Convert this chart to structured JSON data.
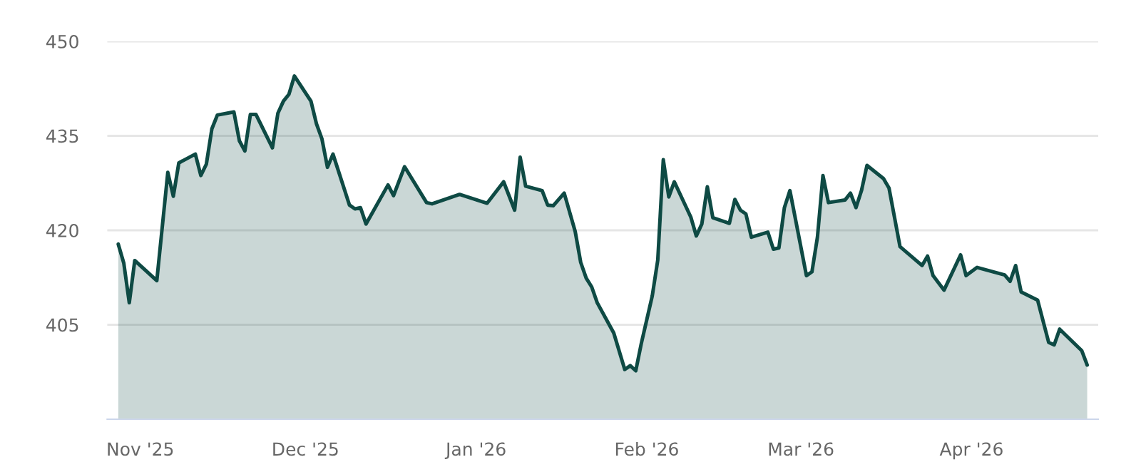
{
  "chart_data": {
    "type": "area",
    "x": [
      "2025-10-28",
      "2025-10-29",
      "2025-10-30",
      "2025-10-31",
      "2025-11-04",
      "2025-11-06",
      "2025-11-07",
      "2025-11-08",
      "2025-11-11",
      "2025-11-12",
      "2025-11-13",
      "2025-11-14",
      "2025-11-15",
      "2025-11-18",
      "2025-11-19",
      "2025-11-20",
      "2025-11-21",
      "2025-11-22",
      "2025-11-25",
      "2025-11-26",
      "2025-11-27",
      "2025-11-28",
      "2025-11-29",
      "2025-12-02",
      "2025-12-03",
      "2025-12-04",
      "2025-12-05",
      "2025-12-06",
      "2025-12-09",
      "2025-12-10",
      "2025-12-11",
      "2025-12-12",
      "2025-12-16",
      "2025-12-17",
      "2025-12-19",
      "2025-12-23",
      "2025-12-24",
      "2025-12-29",
      "2026-01-03",
      "2026-01-06",
      "2026-01-08",
      "2026-01-09",
      "2026-01-10",
      "2026-01-13",
      "2026-01-14",
      "2026-01-15",
      "2026-01-17",
      "2026-01-19",
      "2026-01-20",
      "2026-01-21",
      "2026-01-22",
      "2026-01-23",
      "2026-01-26",
      "2026-01-28",
      "2026-01-29",
      "2026-01-30",
      "2026-01-31",
      "2026-02-02",
      "2026-02-03",
      "2026-02-04",
      "2026-02-05",
      "2026-02-06",
      "2026-02-09",
      "2026-02-10",
      "2026-02-11",
      "2026-02-12",
      "2026-02-13",
      "2026-02-16",
      "2026-02-17",
      "2026-02-18",
      "2026-02-19",
      "2026-02-20",
      "2026-02-23",
      "2026-02-24",
      "2026-02-25",
      "2026-02-26",
      "2026-02-27",
      "2026-03-02",
      "2026-03-03",
      "2026-03-04",
      "2026-03-05",
      "2026-03-06",
      "2026-03-09",
      "2026-03-10",
      "2026-03-11",
      "2026-03-12",
      "2026-03-13",
      "2026-03-16",
      "2026-03-17",
      "2026-03-19",
      "2026-03-23",
      "2026-03-24",
      "2026-03-25",
      "2026-03-27",
      "2026-03-30",
      "2026-03-31",
      "2026-04-02",
      "2026-04-07",
      "2026-04-08",
      "2026-04-09",
      "2026-04-10",
      "2026-04-13",
      "2026-04-15",
      "2026-04-16",
      "2026-04-17",
      "2026-04-21",
      "2026-04-22"
    ],
    "series": [
      {
        "color": "#0e4a44",
        "values": [
          417.8,
          414.8,
          408.5,
          415.2,
          412.0,
          429.2,
          425.4,
          430.7,
          432.1,
          428.7,
          430.5,
          436.1,
          438.3,
          438.8,
          434.2,
          432.6,
          438.4,
          438.4,
          433.1,
          438.6,
          440.5,
          441.6,
          444.5,
          440.5,
          436.9,
          434.5,
          430.0,
          432.1,
          424.0,
          423.4,
          423.6,
          421.0,
          427.2,
          425.5,
          430.1,
          424.4,
          424.2,
          425.7,
          424.3,
          427.7,
          423.2,
          431.6,
          427.0,
          426.3,
          424.0,
          423.9,
          425.9,
          419.8,
          414.9,
          412.4,
          411.0,
          408.5,
          403.7,
          397.9,
          398.5,
          397.7,
          402.0,
          409.6,
          415.3,
          431.2,
          425.3,
          427.7,
          422.1,
          419.1,
          421.0,
          426.9,
          422.0,
          421.1,
          424.9,
          423.2,
          422.6,
          418.9,
          419.7,
          417.0,
          417.2,
          423.6,
          426.3,
          412.8,
          413.4,
          418.9,
          428.7,
          424.4,
          424.8,
          425.9,
          423.6,
          426.3,
          430.3,
          428.2,
          426.7,
          417.4,
          414.4,
          415.9,
          412.8,
          410.5,
          416.1,
          412.8,
          414.1,
          412.9,
          411.9,
          414.4,
          410.2,
          408.9,
          402.2,
          401.8,
          404.3,
          400.9,
          398.6
        ]
      }
    ],
    "xlim": [
      "2025-10-26",
      "2026-04-24"
    ],
    "xticks": [
      {
        "value": "2025-11-01",
        "label": "Nov '25"
      },
      {
        "value": "2025-12-01",
        "label": "Dec '25"
      },
      {
        "value": "2026-01-01",
        "label": "Jan '26"
      },
      {
        "value": "2026-02-01",
        "label": "Feb '26"
      },
      {
        "value": "2026-03-01",
        "label": "Mar '26"
      },
      {
        "value": "2026-04-01",
        "label": "Apr '26"
      }
    ],
    "ylim": [
      390,
      450
    ],
    "yticks": [
      405,
      420,
      435,
      450
    ],
    "grid": "y"
  }
}
